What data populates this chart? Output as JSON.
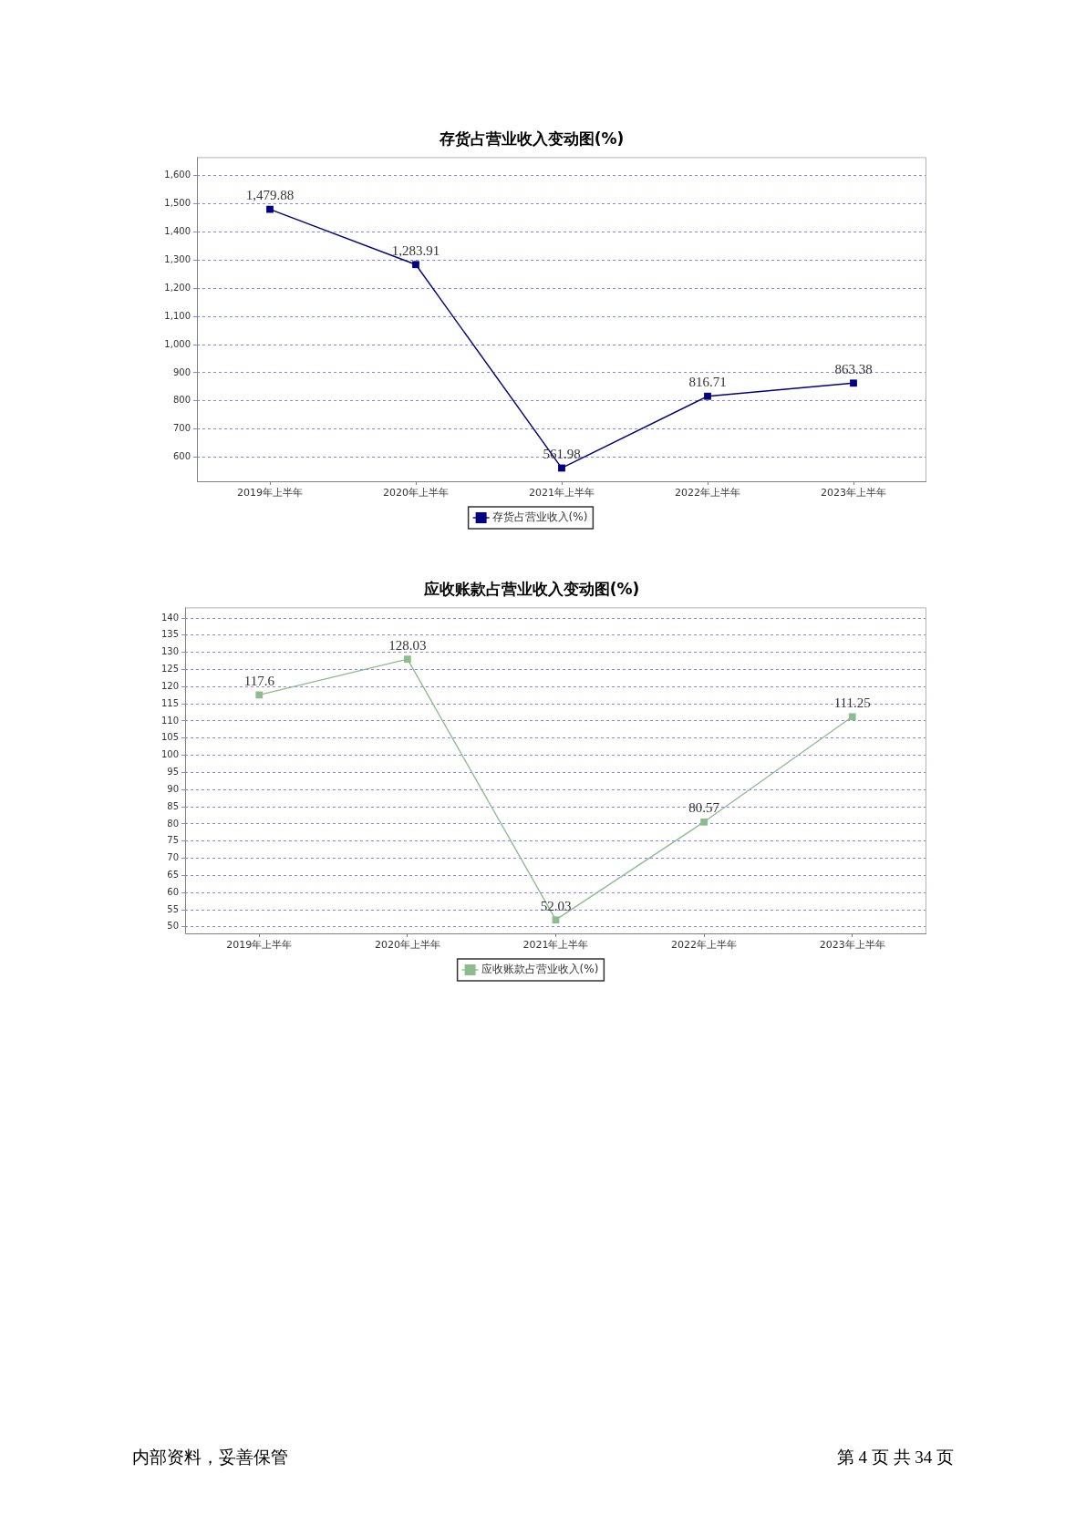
{
  "chart_data": [
    {
      "type": "line",
      "title": "存货占营业收入变动图(%)",
      "categories": [
        "2019年上半年",
        "2020年上半年",
        "2021年上半年",
        "2022年上半年",
        "2023年上半年"
      ],
      "series": [
        {
          "name": "存货占营业收入(%)",
          "color": "#000080",
          "values": [
            1479.88,
            1283.91,
            561.98,
            816.71,
            863.38
          ],
          "value_labels": [
            "1,479.88",
            "1,283.91",
            "561.98",
            "816.71",
            "863.38"
          ]
        }
      ],
      "ylim": [
        515,
        1665
      ],
      "yticks": [
        600,
        700,
        800,
        900,
        {
          "value": 1000,
          "label": "1,000"
        },
        {
          "value": 1100,
          "label": "1,100"
        },
        {
          "value": 1200,
          "label": "1,200"
        },
        {
          "value": 1300,
          "label": "1,300"
        },
        {
          "value": 1400,
          "label": "1,400"
        },
        {
          "value": 1500,
          "label": "1,500"
        },
        {
          "value": 1600,
          "label": "1,600"
        }
      ],
      "grid": "y",
      "legend": "bottom",
      "marker": "square",
      "line_style": "solid"
    },
    {
      "type": "line",
      "title": "应收账款占营业收入变动图(%)",
      "categories": [
        "2019年上半年",
        "2020年上半年",
        "2021年上半年",
        "2022年上半年",
        "2023年上半年"
      ],
      "series": [
        {
          "name": "应收账款占营业收入(%)",
          "color": "#8fbc8f",
          "values": [
            117.6,
            128.03,
            52.03,
            80.57,
            111.25
          ]
        }
      ],
      "data_labels": true,
      "ylim": [
        48.1,
        143.1
      ],
      "yticks": [
        50,
        55,
        60,
        65,
        70,
        75,
        80,
        85,
        90,
        95,
        100,
        105,
        110,
        115,
        120,
        125,
        130,
        135,
        140
      ],
      "grid": "y",
      "legend": "bottom",
      "marker": "square",
      "line_style": "solid",
      "annotations": [
        "内部资料，妥善保管",
        "第 4 页 共 34 页"
      ]
    }
  ]
}
